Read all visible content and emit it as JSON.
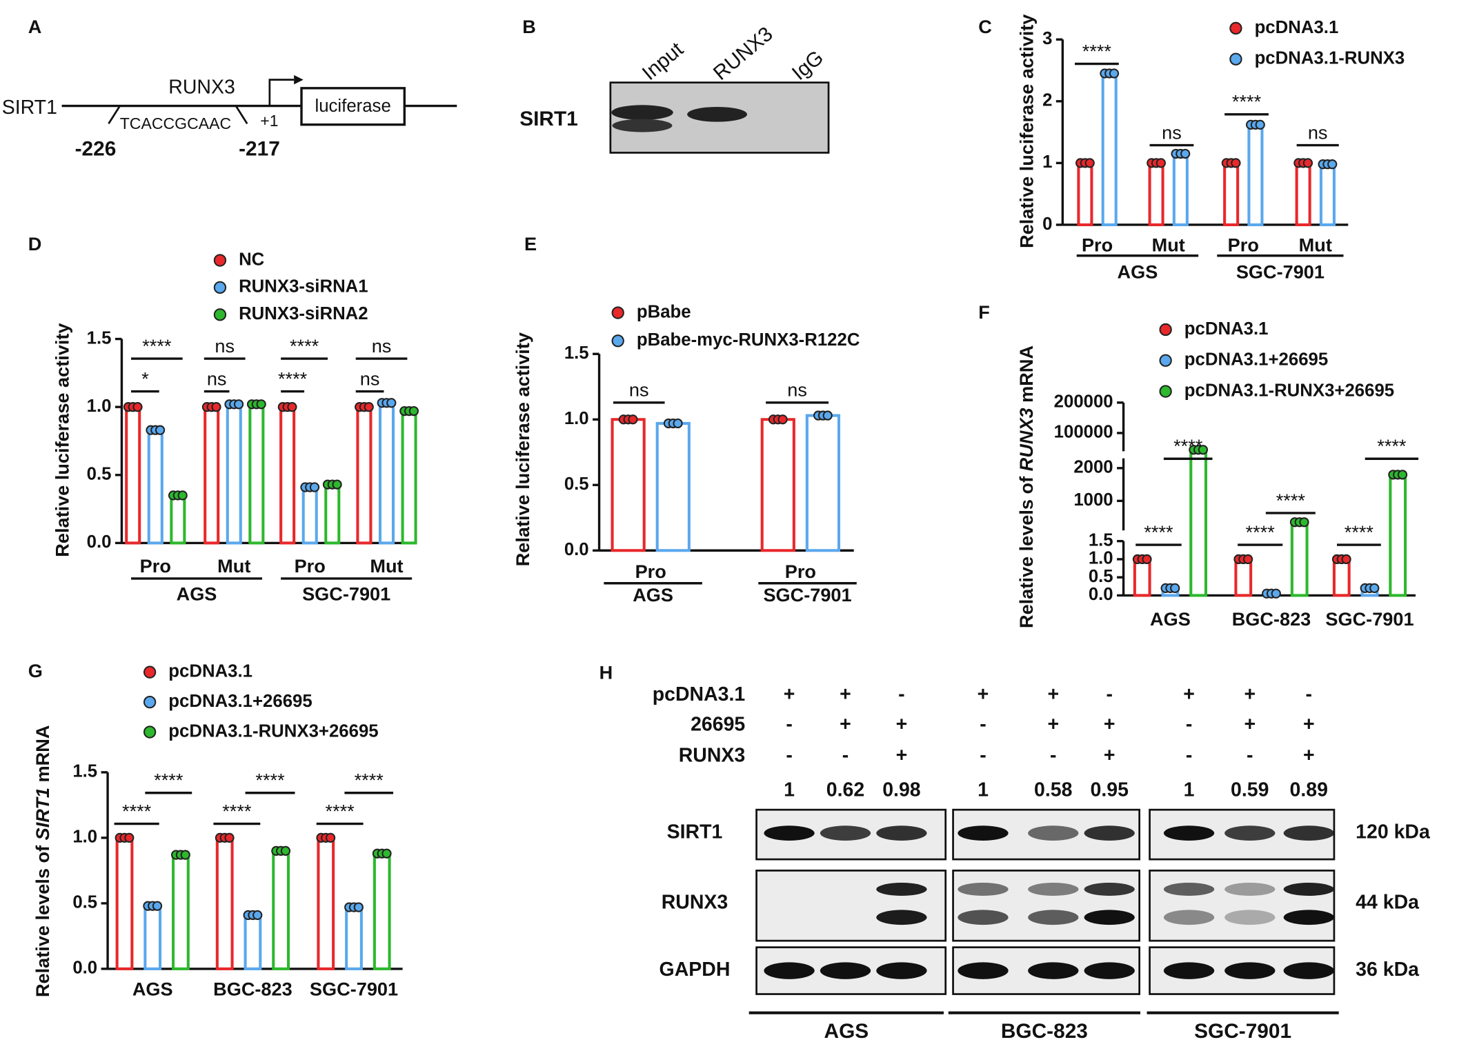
{
  "panel_A": {
    "label": "A",
    "gene": "SIRT1",
    "factor": "RUNX3",
    "motif": "TCACCGCAAC",
    "start": "-226",
    "end": "-217",
    "tss": "+1",
    "reporter": "luciferase"
  },
  "panel_B": {
    "label": "B",
    "lanes": [
      "Input",
      "RUNX3",
      "IgG"
    ],
    "target": "SIRT1"
  },
  "chart_data": [
    {
      "panel": "C",
      "type": "bar",
      "y_label": "Relative luciferase activity",
      "categories": [
        "Pro",
        "Mut",
        "Pro",
        "Mut"
      ],
      "groups": [
        "AGS",
        "SGC-7901"
      ],
      "series": [
        {
          "name": "pcDNA3.1",
          "color": "#e8282b",
          "values": [
            1,
            1,
            1,
            1
          ]
        },
        {
          "name": "pcDNA3.1-RUNX3",
          "color": "#5aa8ee",
          "values": [
            2.45,
            1.15,
            1.62,
            0.98
          ]
        }
      ],
      "ylim": [
        0,
        3
      ],
      "yticks": [
        0,
        1,
        2,
        3
      ],
      "annotations": [
        "****",
        "ns",
        "****",
        "ns"
      ]
    },
    {
      "panel": "D",
      "type": "bar",
      "y_label": "Relative luciferase activity",
      "categories": [
        "Pro",
        "Mut",
        "Pro",
        "Mut"
      ],
      "groups": [
        "AGS",
        "SGC-7901"
      ],
      "series": [
        {
          "name": "NC",
          "color": "#e8282b",
          "values": [
            1,
            1,
            1,
            1
          ]
        },
        {
          "name": "RUNX3-siRNA1",
          "color": "#5aa8ee",
          "values": [
            0.83,
            1.02,
            0.41,
            1.03
          ]
        },
        {
          "name": "RUNX3-siRNA2",
          "color": "#2db82d",
          "values": [
            0.35,
            1.02,
            0.43,
            0.97
          ]
        }
      ],
      "ylim": [
        0,
        1.5
      ],
      "yticks": [
        {
          "value": 0,
          "label": "0.0"
        },
        0.5,
        {
          "value": 1,
          "label": "1.0"
        },
        1.5
      ],
      "annotations": [
        "****",
        "*",
        "ns",
        "ns",
        "****",
        "****",
        "ns",
        "ns"
      ]
    },
    {
      "panel": "E",
      "type": "bar",
      "y_label": "Relative luciferase activity",
      "categories": [
        "Pro",
        "Pro"
      ],
      "groups": [
        "AGS",
        "SGC-7901"
      ],
      "series": [
        {
          "name": "pBabe",
          "color": "#e8282b",
          "values": [
            1,
            1
          ]
        },
        {
          "name": "pBabe-myc-RUNX3-R122C",
          "color": "#5aa8ee",
          "values": [
            0.97,
            1.03
          ]
        }
      ],
      "ylim": [
        0,
        1.5
      ],
      "yticks": [
        {
          "value": 0,
          "label": "0.0"
        },
        0.5,
        {
          "value": 1,
          "label": "1.0"
        },
        1.5
      ],
      "annotations": [
        "ns",
        "ns"
      ]
    },
    {
      "panel": "F",
      "type": "bar",
      "y_label": [
        "Relative levels of ",
        "RUNX3",
        " mRNA"
      ],
      "categories": [
        "AGS",
        "BGC-823",
        "SGC-7901"
      ],
      "series": [
        {
          "name": "pcDNA3.1",
          "color": "#e8282b",
          "values": [
            1,
            1,
            1
          ]
        },
        {
          "name": "pcDNA3.1+26695",
          "color": "#5aa8ee",
          "values": [
            0.2,
            0.05,
            0.2
          ]
        },
        {
          "name": "pcDNA3.1-RUNX3+26695",
          "color": "#2db82d",
          "values": [
            45000,
            350,
            1800
          ]
        }
      ],
      "ysegments": [
        [
          0,
          1.5
        ],
        [
          100,
          2300
        ],
        [
          40000,
          200000
        ]
      ],
      "yticks": [
        {
          "value": 0,
          "label": "0.0"
        },
        0.5,
        {
          "value": 1,
          "label": "1.0"
        },
        1.5,
        1000,
        2000,
        100000,
        200000
      ],
      "annotations": [
        "****",
        "****",
        "****",
        "****",
        "****",
        "****"
      ]
    },
    {
      "panel": "G",
      "type": "bar",
      "y_label": [
        "Relative levels of ",
        "SIRT1",
        " mRNA"
      ],
      "categories": [
        "AGS",
        "BGC-823",
        "SGC-7901"
      ],
      "series": [
        {
          "name": "pcDNA3.1",
          "color": "#e8282b",
          "values": [
            1,
            1,
            1
          ]
        },
        {
          "name": "pcDNA3.1+26695",
          "color": "#5aa8ee",
          "values": [
            0.48,
            0.41,
            0.47
          ]
        },
        {
          "name": "pcDNA3.1-RUNX3+26695",
          "color": "#2db82d",
          "values": [
            0.87,
            0.9,
            0.88
          ]
        }
      ],
      "ylim": [
        0,
        1.5
      ],
      "yticks": [
        {
          "value": 0,
          "label": "0.0"
        },
        0.5,
        {
          "value": 1,
          "label": "1.0"
        },
        1.5
      ],
      "annotations": [
        "****",
        "****",
        "****",
        "****",
        "****",
        "****"
      ]
    }
  ],
  "panel_H": {
    "label": "H",
    "conditions": [
      {
        "name": "pcDNA3.1",
        "signs": [
          "+",
          "+",
          "-",
          "+",
          "+",
          "-",
          "+",
          "+",
          "-"
        ]
      },
      {
        "name": "26695",
        "signs": [
          "-",
          "+",
          "+",
          "-",
          "+",
          "+",
          "-",
          "+",
          "+"
        ]
      },
      {
        "name": "RUNX3",
        "signs": [
          "-",
          "-",
          "+",
          "-",
          "-",
          "+",
          "-",
          "-",
          "+"
        ]
      }
    ],
    "ratios": [
      1,
      0.62,
      0.98,
      1,
      0.58,
      0.95,
      1,
      0.59,
      0.89
    ],
    "blots": [
      {
        "name": "SIRT1",
        "size": "120 kDa"
      },
      {
        "name": "RUNX3",
        "size": "44 kDa"
      },
      {
        "name": "GAPDH",
        "size": "36 kDa"
      }
    ],
    "groups": [
      "AGS",
      "BGC-823",
      "SGC-7901"
    ]
  }
}
